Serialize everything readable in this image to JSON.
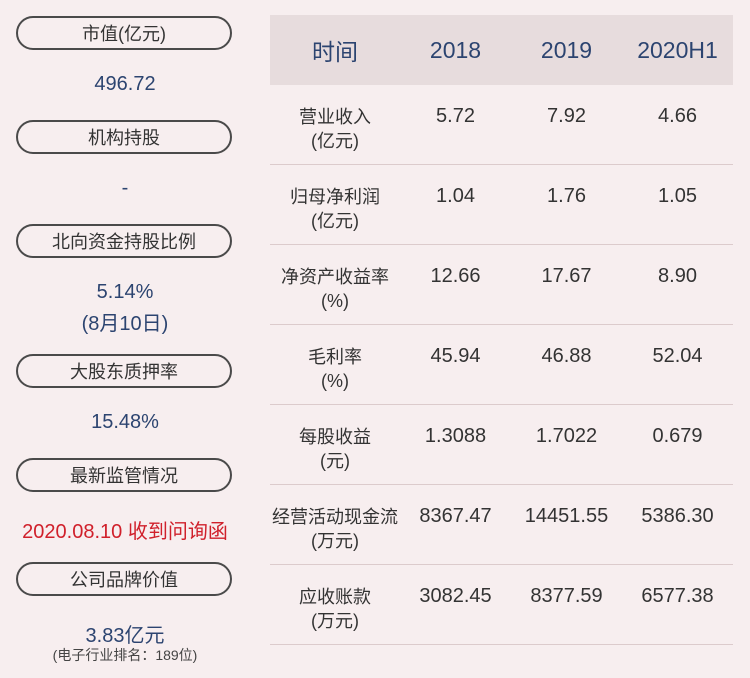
{
  "left": {
    "market_cap": {
      "label": "市值(亿元)",
      "value": "496.72"
    },
    "institution": {
      "label": "机构持股",
      "value": "-"
    },
    "northbound": {
      "label": "北向资金持股比例",
      "value": "5.14%",
      "date": "(8月10日)"
    },
    "pledge": {
      "label": "大股东质押率",
      "value": "15.48%"
    },
    "regulation": {
      "label": "最新监管情况",
      "value": "2020.08.10 收到问询函"
    },
    "brand": {
      "label": "公司品牌价值",
      "value": "3.83亿元",
      "note": "(电子行业排名：189位)"
    }
  },
  "table": {
    "headers": [
      "时间",
      "2018",
      "2019",
      "2020H1"
    ],
    "rows": [
      {
        "label": "营业收入",
        "unit": "(亿元)",
        "values": [
          "5.72",
          "7.92",
          "4.66"
        ]
      },
      {
        "label": "归母净利润",
        "unit": "(亿元)",
        "values": [
          "1.04",
          "1.76",
          "1.05"
        ]
      },
      {
        "label": "净资产收益率",
        "unit": "(%)",
        "values": [
          "12.66",
          "17.67",
          "8.90"
        ]
      },
      {
        "label": "毛利率",
        "unit": "(%)",
        "values": [
          "45.94",
          "46.88",
          "52.04"
        ]
      },
      {
        "label": "每股收益",
        "unit": "(元)",
        "values": [
          "1.3088",
          "1.7022",
          "0.679"
        ]
      },
      {
        "label": "经营活动现金流",
        "unit": "(万元)",
        "values": [
          "8367.47",
          "14451.55",
          "5386.30"
        ]
      },
      {
        "label": "应收账款",
        "unit": "(万元)",
        "values": [
          "3082.45",
          "8377.59",
          "6577.38"
        ]
      }
    ]
  },
  "colors": {
    "background": "#f7eeef",
    "header_bg": "#e7dcdd",
    "value_blue": "#2c4470",
    "alert_red": "#d0202b"
  }
}
